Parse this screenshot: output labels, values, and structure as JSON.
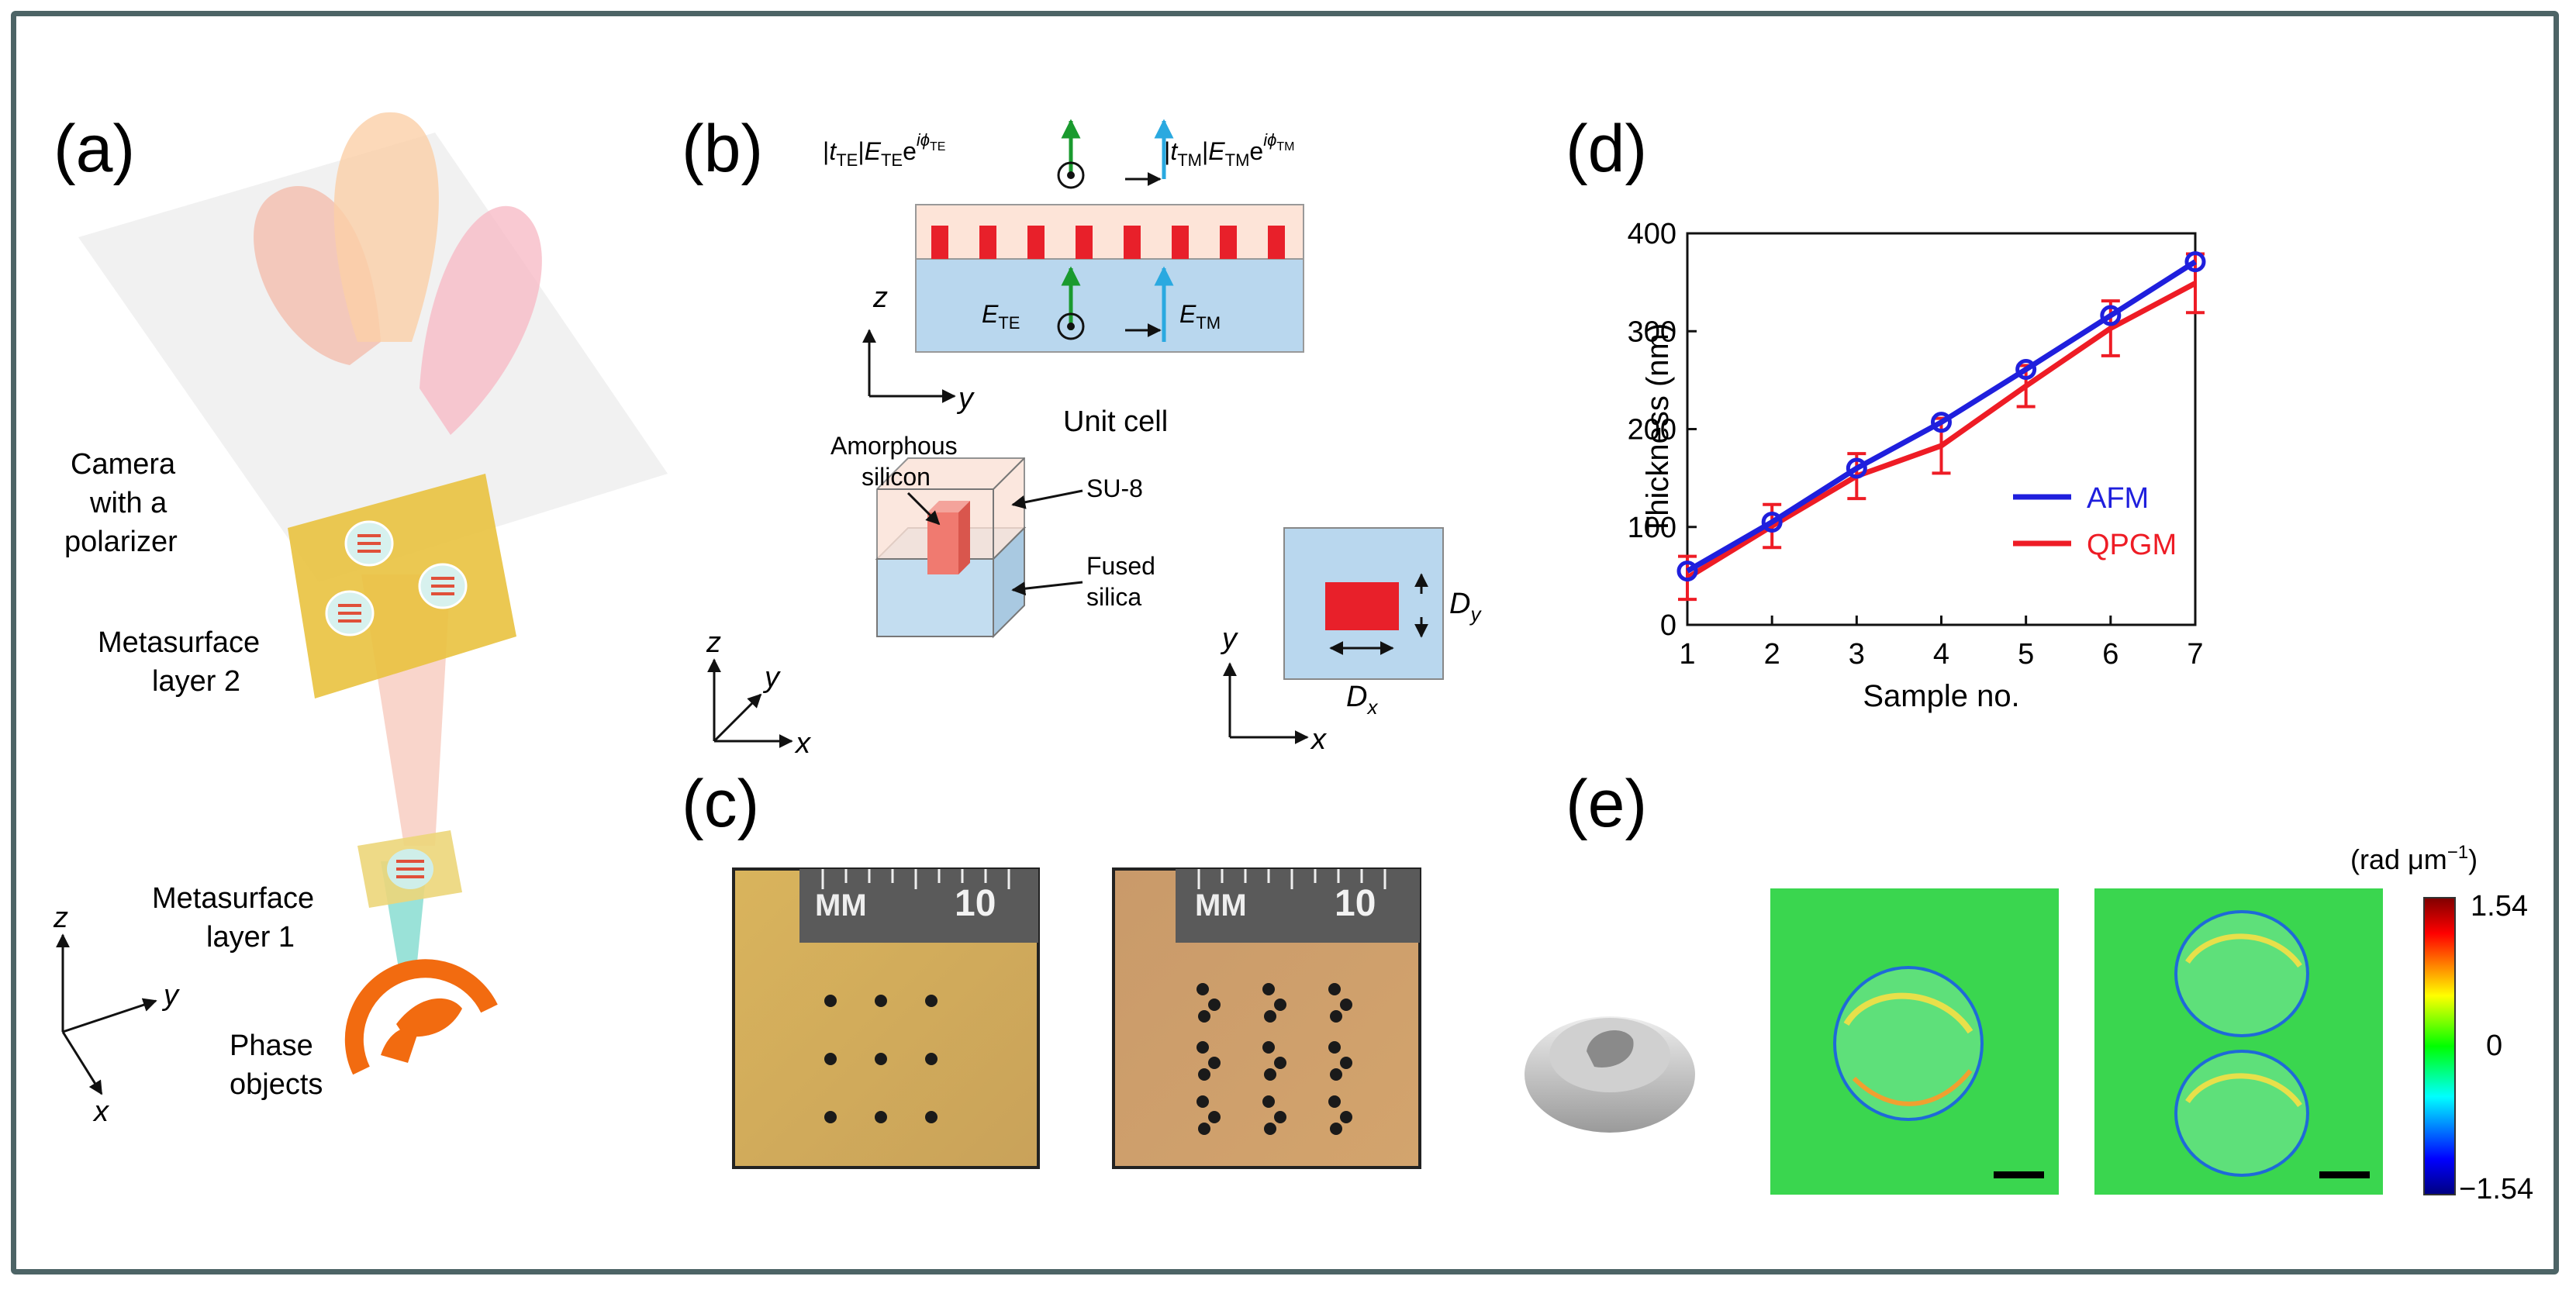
{
  "panels": {
    "a": {
      "letter": "(a)",
      "camera_label": [
        "Camera",
        "with a",
        "polarizer"
      ],
      "meta2_label": [
        "Metasurface",
        "layer 2"
      ],
      "meta1_label": [
        "Metasurface",
        "layer 1"
      ],
      "phase_label": [
        "Phase",
        "objects"
      ],
      "axes": {
        "z": "z",
        "y": "y",
        "x": "x"
      }
    },
    "b": {
      "letter": "(b)",
      "unit_cell_label": "Unit cell",
      "axes": {
        "z": "z",
        "y": "y"
      },
      "field_labels": {
        "t_te": {
          "pre": "|",
          "t": "t",
          "tsub": "TE",
          "mid": "|",
          "e": "E",
          "esub": "TE",
          "exp": "e",
          "sup": "iϕ",
          "supsub": "TE"
        },
        "t_tm": {
          "pre": "|",
          "t": "t",
          "tsub": "TM",
          "mid": "|",
          "e": "E",
          "esub": "TM",
          "exp": "e",
          "sup": "iϕ",
          "supsub": "TM"
        },
        "e_te": {
          "e": "E",
          "sub": "TE"
        },
        "e_tm": {
          "e": "E",
          "sub": "TM"
        }
      },
      "cube_labels": {
        "amorphous": [
          "Amorphous",
          "silicon"
        ],
        "su8": "SU-8",
        "fused": [
          "Fused",
          "silica"
        ]
      },
      "cube_axes": {
        "z": "z",
        "y": "y",
        "x": "x"
      },
      "topview": {
        "dy_main": "D",
        "dy_sub": "y",
        "dx_main": "D",
        "dx_sub": "x",
        "axis_y": "y",
        "axis_x": "x"
      },
      "colors": {
        "cladding": "#fde4d8",
        "substrate": "#b9d7ee",
        "pillar": "#e8202a",
        "te_arrow": "#1a9a2e",
        "tm_arrow": "#2aa9e0"
      }
    },
    "c": {
      "letter": "(c)",
      "ruler_unit": "MM",
      "ruler_value": "10"
    },
    "d": {
      "letter": "(d)"
    },
    "e": {
      "letter": "(e)",
      "colorbar": {
        "unit_label": "(rad μm",
        "unit_exp": "−1",
        "unit_close": ")",
        "max_label": "1.54",
        "mid_label": "0",
        "min_label": "−1.54",
        "stops": [
          "#7f0000",
          "#ff0000",
          "#ffff00",
          "#00ff00",
          "#00ffff",
          "#0000ff",
          "#00007f"
        ]
      }
    }
  },
  "chart_data": {
    "type": "line",
    "title": "",
    "xlabel": "Sample no.",
    "ylabel": "Thickness (nm)",
    "xlim": [
      1,
      7
    ],
    "ylim": [
      0,
      400
    ],
    "xticks": [
      1,
      2,
      3,
      4,
      5,
      6,
      7
    ],
    "yticks": [
      0,
      100,
      200,
      300,
      400
    ],
    "legend_position": "bottom-right",
    "series": [
      {
        "name": "AFM",
        "color": "#1f1fdd",
        "x": [
          1,
          2,
          3,
          4,
          5,
          6,
          7
        ],
        "values": [
          55,
          105,
          160,
          207,
          261,
          316,
          371
        ],
        "markers": true
      },
      {
        "name": "QPGM",
        "color": "#ee1c25",
        "x": [
          1,
          2,
          3,
          4,
          5,
          6,
          7
        ],
        "values": [
          48,
          101,
          152,
          183,
          244,
          303,
          349
        ],
        "error": [
          22,
          22,
          23,
          28,
          21,
          28,
          30
        ]
      }
    ]
  }
}
